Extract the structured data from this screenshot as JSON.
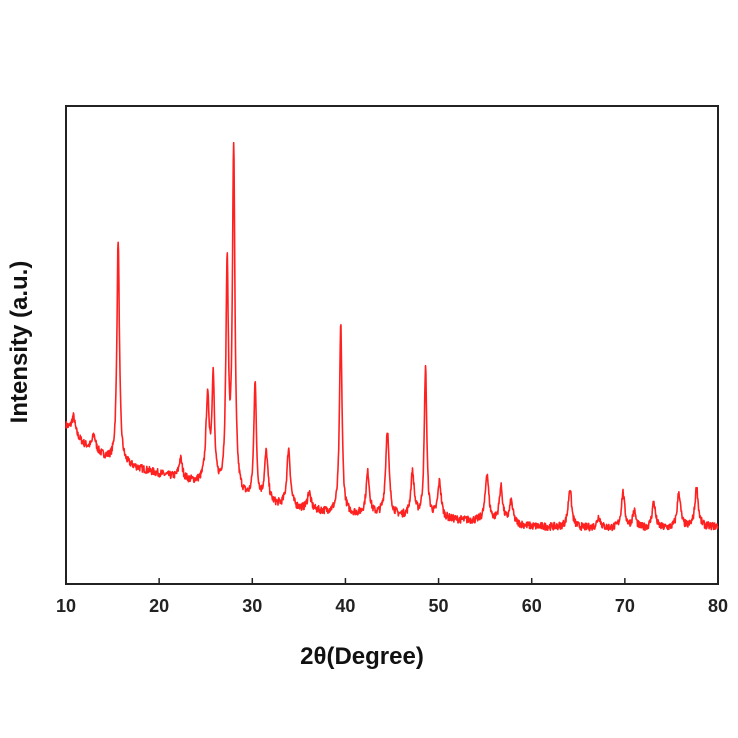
{
  "chart_data": {
    "type": "line",
    "title": "",
    "xlabel": "2θ(Degree)",
    "ylabel": "Intensity (a.u.)",
    "xlim": [
      10,
      80
    ],
    "ylim": [
      0,
      100
    ],
    "xticks": [
      10,
      20,
      30,
      40,
      50,
      60,
      70,
      80
    ],
    "grid": false,
    "legend": "none",
    "y_tick_labels": false,
    "series": [
      {
        "color": "#ff2020",
        "baseline": [
          [
            10,
            33
          ],
          [
            12,
            29
          ],
          [
            15,
            25.5
          ],
          [
            20,
            23
          ],
          [
            25,
            20.5
          ],
          [
            30,
            17
          ],
          [
            35,
            15.5
          ],
          [
            40,
            14.5
          ],
          [
            45,
            14
          ],
          [
            50,
            13.5
          ],
          [
            55,
            13
          ],
          [
            60,
            12
          ],
          [
            65,
            11.7
          ],
          [
            70,
            11.5
          ],
          [
            75,
            11.5
          ],
          [
            80,
            12
          ]
        ],
        "peaks": [
          {
            "x": 10.8,
            "y": 35
          },
          {
            "x": 13.0,
            "y": 31
          },
          {
            "x": 15.6,
            "y": 72
          },
          {
            "x": 22.3,
            "y": 26
          },
          {
            "x": 25.2,
            "y": 38
          },
          {
            "x": 25.8,
            "y": 42
          },
          {
            "x": 27.3,
            "y": 65
          },
          {
            "x": 28.0,
            "y": 90
          },
          {
            "x": 30.3,
            "y": 42
          },
          {
            "x": 31.5,
            "y": 27
          },
          {
            "x": 33.9,
            "y": 28
          },
          {
            "x": 36.1,
            "y": 19
          },
          {
            "x": 39.5,
            "y": 54
          },
          {
            "x": 42.4,
            "y": 23
          },
          {
            "x": 44.5,
            "y": 32
          },
          {
            "x": 47.2,
            "y": 23
          },
          {
            "x": 48.6,
            "y": 45
          },
          {
            "x": 50.1,
            "y": 21
          },
          {
            "x": 55.2,
            "y": 23
          },
          {
            "x": 56.7,
            "y": 20
          },
          {
            "x": 57.8,
            "y": 17
          },
          {
            "x": 64.1,
            "y": 20
          },
          {
            "x": 67.2,
            "y": 14
          },
          {
            "x": 69.8,
            "y": 19
          },
          {
            "x": 71.0,
            "y": 15
          },
          {
            "x": 73.1,
            "y": 17
          },
          {
            "x": 75.8,
            "y": 19
          },
          {
            "x": 77.7,
            "y": 20
          }
        ]
      }
    ]
  }
}
